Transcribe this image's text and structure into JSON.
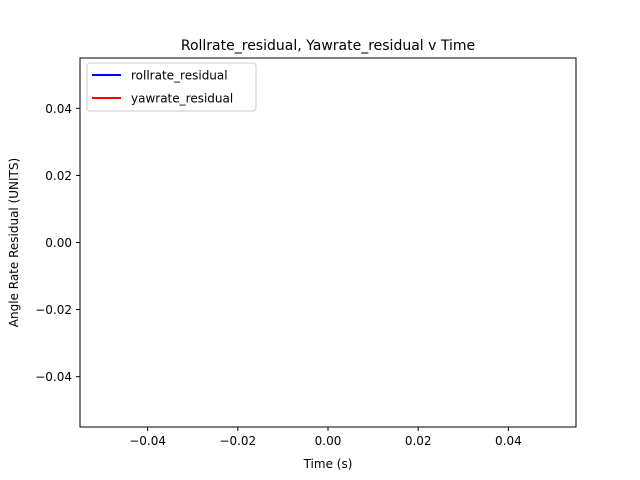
{
  "chart_data": {
    "type": "line",
    "title": "Rollrate_residual, Yawrate_residual v Time",
    "xlabel": "Time (s)",
    "ylabel": "Angle Rate Residual (UNITS)",
    "xlim": [
      -0.055,
      0.055
    ],
    "ylim": [
      -0.055,
      0.055
    ],
    "xticks": [
      -0.04,
      -0.02,
      0.0,
      0.02,
      0.04
    ],
    "yticks": [
      -0.04,
      -0.02,
      0.0,
      0.02,
      0.04
    ],
    "xtick_labels": [
      "−0.04",
      "−0.02",
      "0.00",
      "0.02",
      "0.04"
    ],
    "ytick_labels": [
      "−0.04",
      "−0.02",
      "0.00",
      "0.02",
      "0.04"
    ],
    "grid": false,
    "legend_position": "top-left",
    "series": [
      {
        "name": "rollrate_residual",
        "color": "#0000ff",
        "x": [],
        "y": []
      },
      {
        "name": "yawrate_residual",
        "color": "#ff0000",
        "x": [],
        "y": []
      }
    ]
  }
}
